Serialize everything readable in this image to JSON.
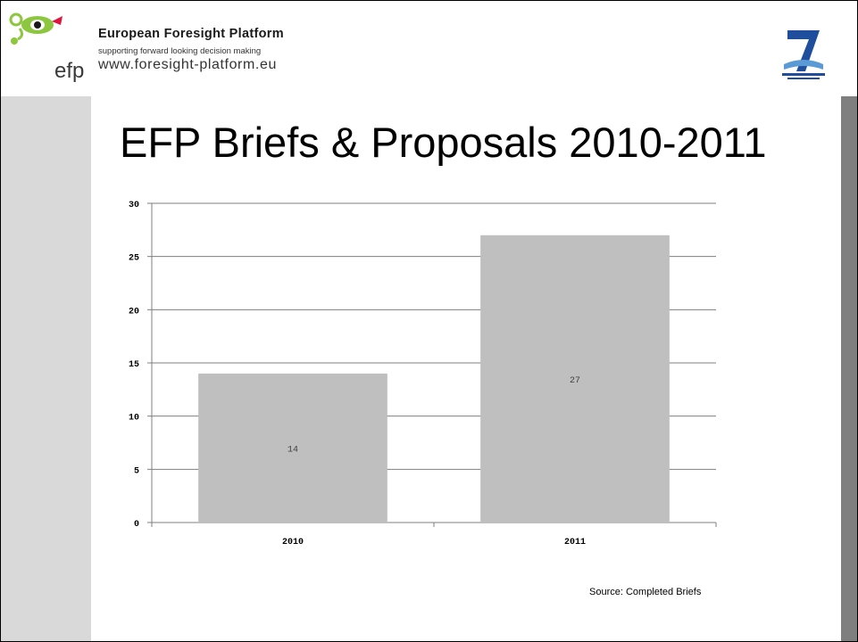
{
  "header": {
    "platform_title": "European Foresight Platform",
    "tagline": "supporting forward looking decision making",
    "url": "www.foresight-platform.eu",
    "logo_text": "efp"
  },
  "slide": {
    "title": "EFP Briefs & Proposals 2010-2011",
    "source_note": "Source: Completed Briefs"
  },
  "colors": {
    "bar": "#bfbfbf",
    "left_stripe": "#d9d9d9",
    "right_stripe": "#7f7f7f",
    "logo_green": "#8dc63f",
    "fp7_blue": "#1f4e9c"
  },
  "chart_data": {
    "type": "bar",
    "categories": [
      "2010",
      "2011"
    ],
    "values": [
      14,
      27
    ],
    "data_labels": [
      "14",
      "27"
    ],
    "ylim": [
      0,
      30
    ],
    "yticks": [
      "0",
      "5",
      "10",
      "15",
      "20",
      "25",
      "30"
    ],
    "xlabel": "",
    "ylabel": "",
    "grid": true,
    "legend": "none"
  }
}
